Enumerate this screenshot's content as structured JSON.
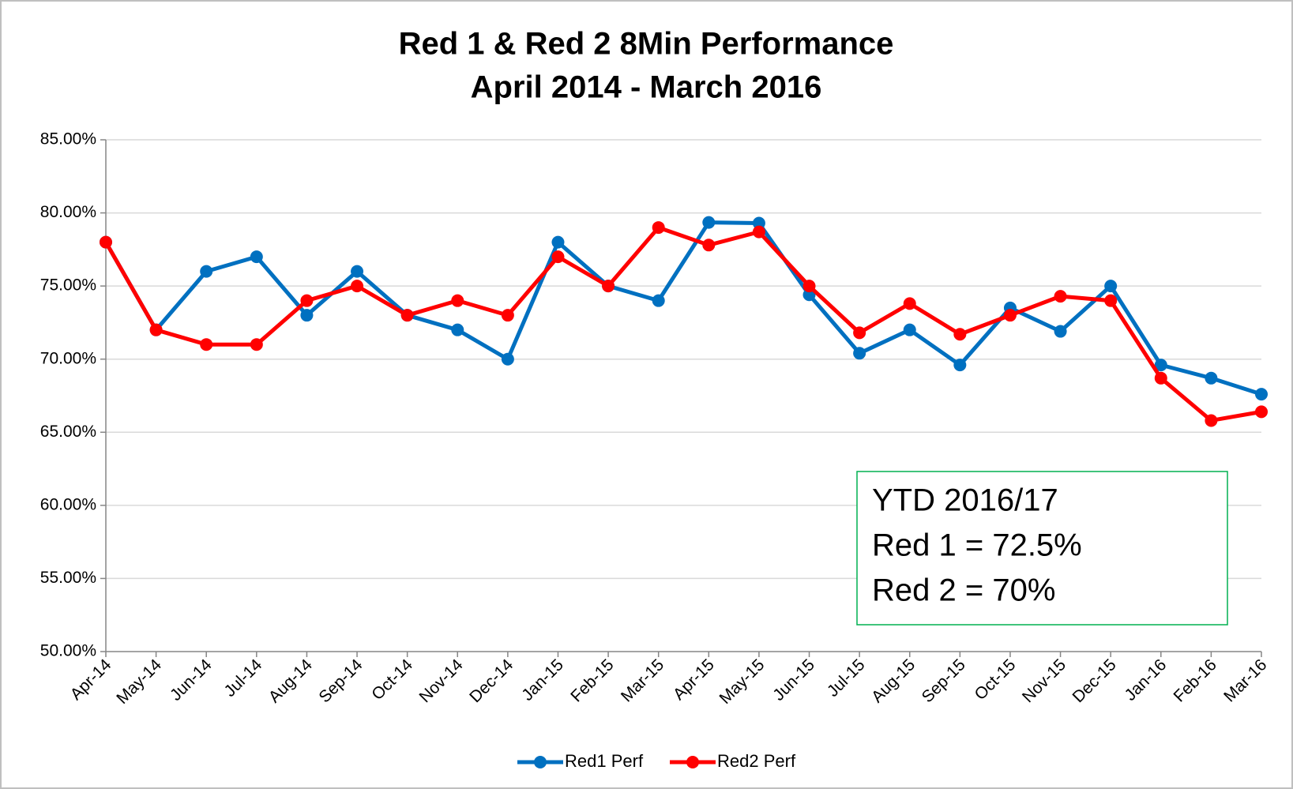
{
  "chart_data": {
    "type": "line",
    "title": [
      "Red 1 & Red 2 8Min Performance",
      "April 2014 - March 2016"
    ],
    "categories": [
      "Apr-14",
      "May-14",
      "Jun-14",
      "Jul-14",
      "Aug-14",
      "Sep-14",
      "Oct-14",
      "Nov-14",
      "Dec-14",
      "Jan-15",
      "Feb-15",
      "Mar-15",
      "Apr-15",
      "May-15",
      "Jun-15",
      "Jul-15",
      "Aug-15",
      "Sep-15",
      "Oct-15",
      "Nov-15",
      "Dec-15",
      "Jan-16",
      "Feb-16",
      "Mar-16"
    ],
    "series": [
      {
        "name": "Red1 Perf",
        "color": "#0070c0",
        "values": [
          78.0,
          72.0,
          76.0,
          77.0,
          73.0,
          76.0,
          73.0,
          72.0,
          70.0,
          78.0,
          75.0,
          74.0,
          79.35,
          79.3,
          74.4,
          70.4,
          72.0,
          69.6,
          73.5,
          71.9,
          75.0,
          69.6,
          68.7,
          67.6
        ]
      },
      {
        "name": "Red2 Perf",
        "color": "#ff0000",
        "values": [
          78.0,
          72.0,
          71.0,
          71.0,
          74.0,
          75.0,
          73.0,
          74.0,
          73.0,
          77.0,
          75.0,
          79.0,
          77.8,
          78.7,
          75.0,
          71.8,
          73.8,
          71.7,
          73.0,
          74.3,
          74.0,
          68.7,
          65.8,
          66.4
        ]
      }
    ],
    "ylim": [
      50,
      85
    ],
    "yticks": [
      {
        "value": 50,
        "label": "50.00%"
      },
      {
        "value": 55,
        "label": "55.00%"
      },
      {
        "value": 60,
        "label": "60.00%"
      },
      {
        "value": 65,
        "label": "65.00%"
      },
      {
        "value": 70,
        "label": "70.00%"
      },
      {
        "value": 75,
        "label": "75.00%"
      },
      {
        "value": 80,
        "label": "80.00%"
      },
      {
        "value": 85,
        "label": "85.00%"
      }
    ],
    "grid": true,
    "legend": "bottom",
    "annotation": [
      "YTD 2016/17",
      "Red 1 = 72.5%",
      "Red 2 = 70%"
    ]
  }
}
